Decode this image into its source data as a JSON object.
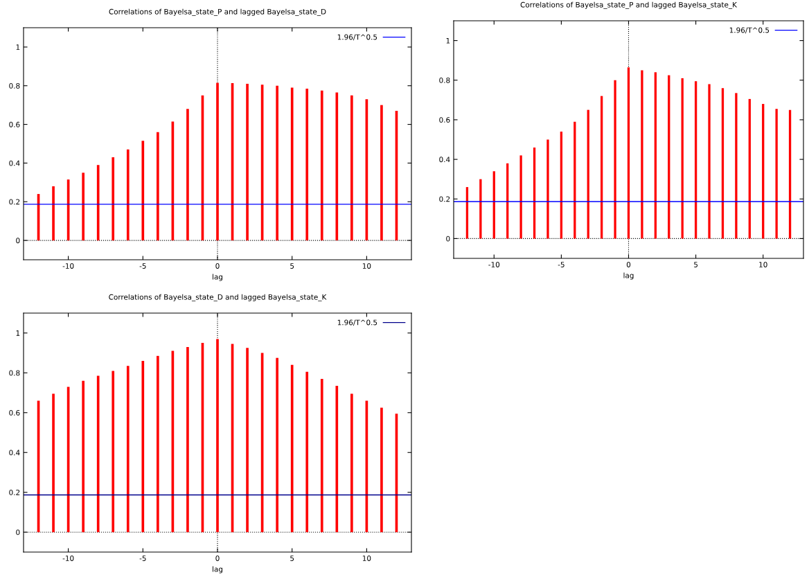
{
  "chart_data": [
    {
      "type": "bar",
      "title": "Correlations of Bayelsa_state_P and lagged Bayelsa_state_D",
      "xlabel": "lag",
      "x": [
        -12,
        -11,
        -10,
        -9,
        -8,
        -7,
        -6,
        -5,
        -4,
        -3,
        -2,
        -1,
        0,
        1,
        2,
        3,
        4,
        5,
        6,
        7,
        8,
        9,
        10,
        11,
        12
      ],
      "series": [
        {
          "color": "#ff0000",
          "values": [
            0.24,
            0.28,
            0.315,
            0.35,
            0.39,
            0.43,
            0.47,
            0.515,
            0.56,
            0.615,
            0.68,
            0.75,
            0.815,
            0.813,
            0.81,
            0.805,
            0.8,
            0.79,
            0.785,
            0.775,
            0.765,
            0.75,
            0.73,
            0.7,
            0.67
          ]
        }
      ],
      "xlim": [
        -13,
        13
      ],
      "ylim": [
        -0.1,
        1.1
      ],
      "xticks": [
        -10,
        -5,
        0,
        5,
        10
      ],
      "yticks": [
        0,
        0.2,
        0.4,
        0.6,
        0.8,
        1
      ],
      "ref_lines": [
        {
          "axis": "y",
          "value": 0.187,
          "label": "1.96/T^0.5",
          "color": "#0000ff",
          "line_style": "solid"
        },
        {
          "axis": "y",
          "value": 0,
          "color": "#000000",
          "line_style": "dotted"
        },
        {
          "axis": "x",
          "value": 0,
          "color": "#000000",
          "line_style": "dotted"
        }
      ],
      "legend": "top right",
      "grid": false
    },
    {
      "type": "bar",
      "title": "Correlations of Bayelsa_state_P and lagged Bayelsa_state_K",
      "xlabel": "lag",
      "x": [
        -12,
        -11,
        -10,
        -9,
        -8,
        -7,
        -6,
        -5,
        -4,
        -3,
        -2,
        -1,
        0,
        1,
        2,
        3,
        4,
        5,
        6,
        7,
        8,
        9,
        10,
        11,
        12
      ],
      "series": [
        {
          "color": "#ff0000",
          "values": [
            0.26,
            0.3,
            0.34,
            0.38,
            0.42,
            0.46,
            0.5,
            0.54,
            0.59,
            0.65,
            0.72,
            0.8,
            0.865,
            0.85,
            0.84,
            0.825,
            0.81,
            0.795,
            0.78,
            0.76,
            0.735,
            0.705,
            0.68,
            0.655,
            0.65
          ]
        }
      ],
      "xlim": [
        -13,
        13
      ],
      "ylim": [
        -0.1,
        1.1
      ],
      "xticks": [
        -10,
        -5,
        0,
        5,
        10
      ],
      "yticks": [
        0,
        0.2,
        0.4,
        0.6,
        0.8,
        1
      ],
      "ref_lines": [
        {
          "axis": "y",
          "value": 0.187,
          "label": "1.96/T^0.5",
          "color": "#0000ff",
          "line_style": "solid"
        },
        {
          "axis": "y",
          "value": 0,
          "color": "#000000",
          "line_style": "dotted"
        },
        {
          "axis": "x",
          "value": 0,
          "color": "#000000",
          "line_style": "dotted"
        }
      ],
      "legend": "top right",
      "grid": false
    },
    {
      "type": "bar",
      "title": "Correlations of Bayelsa_state_D and lagged Bayelsa_state_K",
      "xlabel": "lag",
      "x": [
        -12,
        -11,
        -10,
        -9,
        -8,
        -7,
        -6,
        -5,
        -4,
        -3,
        -2,
        -1,
        0,
        1,
        2,
        3,
        4,
        5,
        6,
        7,
        8,
        9,
        10,
        11,
        12
      ],
      "series": [
        {
          "color": "#ff0000",
          "values": [
            0.66,
            0.695,
            0.73,
            0.76,
            0.785,
            0.81,
            0.835,
            0.86,
            0.885,
            0.91,
            0.93,
            0.95,
            0.97,
            0.945,
            0.925,
            0.9,
            0.875,
            0.84,
            0.805,
            0.77,
            0.735,
            0.695,
            0.66,
            0.625,
            0.595
          ]
        }
      ],
      "xlim": [
        -13,
        13
      ],
      "ylim": [
        -0.1,
        1.1
      ],
      "xticks": [
        -10,
        -5,
        0,
        5,
        10
      ],
      "yticks": [
        0,
        0.2,
        0.4,
        0.6,
        0.8,
        1
      ],
      "ref_lines": [
        {
          "axis": "y",
          "value": 0.187,
          "label": "1.96/T^0.5",
          "color": "#00008b",
          "line_style": "solid"
        },
        {
          "axis": "y",
          "value": 0,
          "color": "#000000",
          "line_style": "dotted"
        },
        {
          "axis": "x",
          "value": 0,
          "color": "#000000",
          "line_style": "dotted"
        }
      ],
      "legend": "top right",
      "grid": false
    }
  ]
}
